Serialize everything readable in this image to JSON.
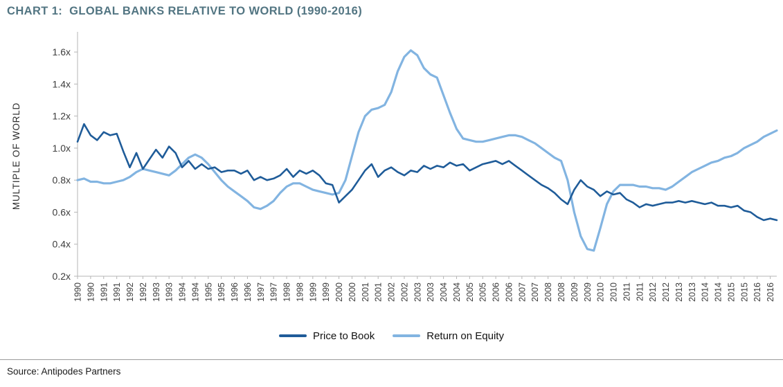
{
  "page": {
    "title": "CHART 1:  GLOBAL BANKS RELATIVE TO WORLD (1990-2016)",
    "source": "Source: Antipodes Partners"
  },
  "chart_data": {
    "type": "line",
    "title": "CHART 1: GLOBAL BANKS RELATIVE TO WORLD (1990-2016)",
    "ylabel": "MULTIPLE OF WORLD",
    "xlabel": "",
    "ylim": [
      0.2,
      1.7
    ],
    "grid": false,
    "legend_position": "bottom-center",
    "y_tick_values": [
      0.2,
      0.4,
      0.6,
      0.8,
      1.0,
      1.2,
      1.4,
      1.6
    ],
    "y_tick_labels": [
      "0.2x",
      "0.4x",
      "0.6x",
      "0.8x",
      "1.0x",
      "1.2x",
      "1.4x",
      "1.6x"
    ],
    "x_start_year": 1990,
    "points_per_year": 4,
    "x_labels_every_points": 2,
    "x_labels": [
      "1990",
      "1990",
      "1991",
      "1991",
      "1992",
      "1992",
      "1993",
      "1993",
      "1994",
      "1994",
      "1995",
      "1995",
      "1996",
      "1996",
      "1997",
      "1997",
      "1998",
      "1998",
      "1999",
      "1999",
      "2000",
      "2000",
      "2001",
      "2001",
      "2002",
      "2002",
      "2003",
      "2003",
      "2004",
      "2004",
      "2005",
      "2005",
      "2006",
      "2006",
      "2007",
      "2007",
      "2008",
      "2008",
      "2009",
      "2009",
      "2010",
      "2010",
      "2011",
      "2011",
      "2012",
      "2012",
      "2013",
      "2013",
      "2014",
      "2014",
      "2015",
      "2015",
      "2016",
      "2016"
    ],
    "series": [
      {
        "name": "Price to Book",
        "color": "#1f5c99",
        "stroke_width": 2.6,
        "values": [
          1.04,
          1.15,
          1.08,
          1.05,
          1.1,
          1.08,
          1.09,
          0.98,
          0.88,
          0.97,
          0.87,
          0.93,
          0.99,
          0.94,
          1.01,
          0.97,
          0.88,
          0.92,
          0.87,
          0.9,
          0.87,
          0.88,
          0.85,
          0.86,
          0.86,
          0.84,
          0.86,
          0.8,
          0.82,
          0.8,
          0.81,
          0.83,
          0.87,
          0.82,
          0.86,
          0.84,
          0.86,
          0.83,
          0.78,
          0.77,
          0.66,
          0.7,
          0.74,
          0.8,
          0.86,
          0.9,
          0.82,
          0.86,
          0.88,
          0.85,
          0.83,
          0.86,
          0.85,
          0.89,
          0.87,
          0.89,
          0.88,
          0.91,
          0.89,
          0.9,
          0.86,
          0.88,
          0.9,
          0.91,
          0.92,
          0.9,
          0.92,
          0.89,
          0.86,
          0.83,
          0.8,
          0.77,
          0.75,
          0.72,
          0.68,
          0.65,
          0.74,
          0.8,
          0.76,
          0.74,
          0.7,
          0.73,
          0.71,
          0.72,
          0.68,
          0.66,
          0.63,
          0.65,
          0.64,
          0.65,
          0.66,
          0.66,
          0.67,
          0.66,
          0.67,
          0.66,
          0.65,
          0.66,
          0.64,
          0.64,
          0.63,
          0.64,
          0.61,
          0.6,
          0.57,
          0.55,
          0.56,
          0.55
        ]
      },
      {
        "name": "Return on Equity",
        "color": "#82b4e1",
        "stroke_width": 3.2,
        "values": [
          0.8,
          0.81,
          0.79,
          0.79,
          0.78,
          0.78,
          0.79,
          0.8,
          0.82,
          0.85,
          0.87,
          0.86,
          0.85,
          0.84,
          0.83,
          0.86,
          0.9,
          0.94,
          0.96,
          0.94,
          0.9,
          0.85,
          0.8,
          0.76,
          0.73,
          0.7,
          0.67,
          0.63,
          0.62,
          0.64,
          0.67,
          0.72,
          0.76,
          0.78,
          0.78,
          0.76,
          0.74,
          0.73,
          0.72,
          0.71,
          0.72,
          0.8,
          0.95,
          1.1,
          1.2,
          1.24,
          1.25,
          1.27,
          1.35,
          1.48,
          1.57,
          1.61,
          1.58,
          1.5,
          1.46,
          1.44,
          1.33,
          1.22,
          1.12,
          1.06,
          1.05,
          1.04,
          1.04,
          1.05,
          1.06,
          1.07,
          1.08,
          1.08,
          1.07,
          1.05,
          1.03,
          1.0,
          0.97,
          0.94,
          0.92,
          0.8,
          0.6,
          0.45,
          0.37,
          0.36,
          0.5,
          0.65,
          0.73,
          0.77,
          0.77,
          0.77,
          0.76,
          0.76,
          0.75,
          0.75,
          0.74,
          0.76,
          0.79,
          0.82,
          0.85,
          0.87,
          0.89,
          0.91,
          0.92,
          0.94,
          0.95,
          0.97,
          1.0,
          1.02,
          1.04,
          1.07,
          1.09,
          1.11
        ]
      }
    ]
  }
}
